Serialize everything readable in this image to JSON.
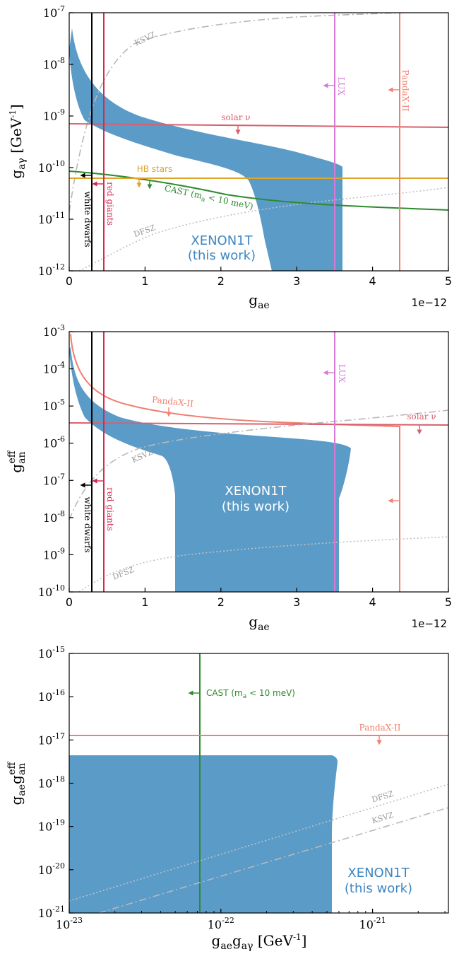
{
  "chart_data": [
    {
      "type": "line",
      "xlabel": "g_ae",
      "ylabel": "g_aγ [GeV^-1]",
      "x_multiplier_label": "1e−12",
      "xlim": [
        0,
        5
      ],
      "ylim_log10": [
        -12,
        -7
      ],
      "x_ticks": [
        "0",
        "1",
        "2",
        "3",
        "4",
        "5"
      ],
      "y_ticks": [
        {
          "base": "10",
          "exp": "-12"
        },
        {
          "base": "10",
          "exp": "-11"
        },
        {
          "base": "10",
          "exp": "-10"
        },
        {
          "base": "10",
          "exp": "-9"
        },
        {
          "base": "10",
          "exp": "-8"
        },
        {
          "base": "10",
          "exp": "-7"
        }
      ],
      "series": [
        {
          "name": "XENON1T (this work)",
          "kind": "region",
          "color": "#5b9bc8"
        },
        {
          "name": "solar ν",
          "kind": "hline",
          "color": "#d9606d"
        },
        {
          "name": "HB stars",
          "kind": "hline",
          "color": "#e0a526"
        },
        {
          "name": "CAST (ma < 10 meV)",
          "kind": "curve",
          "color": "#2e8b2e"
        },
        {
          "name": "KSVZ",
          "kind": "curve",
          "color": "#b8b8b8"
        },
        {
          "name": "DFSZ",
          "kind": "curve",
          "color": "#c0c0c0"
        },
        {
          "name": "white dwarfs",
          "kind": "vline",
          "x": 0.28,
          "color": "#000000"
        },
        {
          "name": "red giants",
          "kind": "vline",
          "x": 0.44,
          "color": "#d62850"
        },
        {
          "name": "LUX",
          "kind": "vline",
          "x": 3.5,
          "color": "#d67ad6"
        },
        {
          "name": "PandaX-II",
          "kind": "vline",
          "x": 4.35,
          "color": "#f08070"
        }
      ],
      "labels": {
        "xenon": "XENON1T",
        "xenon_sub": "(this work)",
        "ksvz": "KSVZ",
        "dfsz": "DFSZ",
        "solar": "solar ν",
        "hb": "HB stars",
        "cast": "CAST (m",
        "cast_sub": "a",
        "cast_tail": " < 10 meV)",
        "lux": "LUX",
        "pandax": "PandaX-II",
        "wd": "white dwarfs",
        "rg": "red giants"
      }
    },
    {
      "type": "line",
      "xlabel": "g_ae",
      "ylabel": "g_an^eff",
      "x_multiplier_label": "1e−12",
      "xlim": [
        0,
        5
      ],
      "ylim_log10": [
        -10,
        -3
      ],
      "x_ticks": [
        "0",
        "1",
        "2",
        "3",
        "4",
        "5"
      ],
      "y_ticks": [
        {
          "base": "10",
          "exp": "-10"
        },
        {
          "base": "10",
          "exp": "-9"
        },
        {
          "base": "10",
          "exp": "-8"
        },
        {
          "base": "10",
          "exp": "-7"
        },
        {
          "base": "10",
          "exp": "-6"
        },
        {
          "base": "10",
          "exp": "-5"
        },
        {
          "base": "10",
          "exp": "-4"
        },
        {
          "base": "10",
          "exp": "-3"
        }
      ],
      "series": [
        {
          "name": "XENON1T (this work)",
          "kind": "region",
          "color": "#5b9bc8"
        },
        {
          "name": "PandaX-II",
          "kind": "curve",
          "color": "#f08070"
        },
        {
          "name": "solar ν",
          "kind": "hline",
          "color": "#d9606d"
        },
        {
          "name": "KSVZ",
          "kind": "curve",
          "color": "#b8b8b8"
        },
        {
          "name": "DFSZ",
          "kind": "curve",
          "color": "#c0c0c0"
        },
        {
          "name": "white dwarfs",
          "kind": "vline",
          "x": 0.28,
          "color": "#000000"
        },
        {
          "name": "red giants",
          "kind": "vline",
          "x": 0.44,
          "color": "#d62850"
        },
        {
          "name": "LUX",
          "kind": "vline",
          "x": 3.5,
          "color": "#d67ad6"
        }
      ],
      "labels": {
        "xenon": "XENON1T",
        "xenon_sub": "(this work)",
        "ksvz": "KSVZ",
        "dfsz": "DFSZ",
        "solar": "solar ν",
        "lux": "LUX",
        "pandax": "PandaX-II",
        "wd": "white dwarfs",
        "rg": "red giants"
      }
    },
    {
      "type": "line",
      "xlabel": "g_ae g_aγ [GeV^-1]",
      "ylabel": "g_ae g_an^eff",
      "xlim_log10": [
        -23,
        -20.5
      ],
      "ylim_log10": [
        -21,
        -15
      ],
      "x_ticks": [
        {
          "base": "10",
          "exp": "-23"
        },
        {
          "base": "10",
          "exp": "-22"
        },
        {
          "base": "10",
          "exp": "-21"
        }
      ],
      "y_ticks": [
        {
          "base": "10",
          "exp": "-21"
        },
        {
          "base": "10",
          "exp": "-20"
        },
        {
          "base": "10",
          "exp": "-19"
        },
        {
          "base": "10",
          "exp": "-18"
        },
        {
          "base": "10",
          "exp": "-17"
        },
        {
          "base": "10",
          "exp": "-16"
        },
        {
          "base": "10",
          "exp": "-15"
        }
      ],
      "series": [
        {
          "name": "XENON1T (this work)",
          "kind": "region",
          "color": "#5b9bc8"
        },
        {
          "name": "CAST (ma < 10 meV)",
          "kind": "vline",
          "x": 8e-23,
          "color": "#2e8b2e"
        },
        {
          "name": "PandaX-II",
          "kind": "hline",
          "y": 1.2e-17,
          "color": "#f08070"
        },
        {
          "name": "DFSZ",
          "kind": "curve",
          "color": "#c0c0c0"
        },
        {
          "name": "KSVZ",
          "kind": "curve",
          "color": "#b8b8b8"
        }
      ],
      "labels": {
        "xenon": "XENON1T",
        "xenon_sub": "(this work)",
        "ksvz": "KSVZ",
        "dfsz": "DFSZ",
        "cast": "CAST (m",
        "cast_sub": "a",
        "cast_tail": " < 10 meV)",
        "pandax": "PandaX-II"
      }
    }
  ]
}
